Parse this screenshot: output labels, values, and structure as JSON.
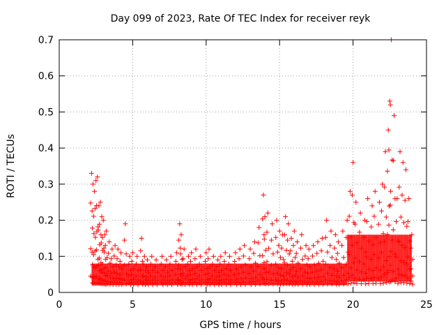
{
  "chart_data": {
    "type": "scatter",
    "title": "Day 099 of 2023, Rate Of TEC Index for receiver reyk",
    "xlabel": "GPS time / hours",
    "ylabel": "ROTI / TECUs",
    "xlim": [
      0,
      25
    ],
    "ylim": [
      0,
      0.7
    ],
    "xticks": [
      0,
      5,
      10,
      15,
      20,
      25
    ],
    "yticks": [
      0,
      0.1,
      0.2,
      0.3,
      0.4,
      0.5,
      0.6,
      0.7
    ],
    "xtick_labels": [
      "0",
      "5",
      "10",
      "15",
      "20",
      "25"
    ],
    "ytick_labels": [
      "0",
      "0.1",
      "0.2",
      "0.3",
      "0.4",
      "0.5",
      "0.6",
      "0.7"
    ],
    "grid": true,
    "marker": "+",
    "color": "#ff0000",
    "series": [
      {
        "x": [
          2.2,
          2.3,
          2.4,
          2.5,
          2.6,
          2.7,
          2.8,
          2.9,
          3.0,
          3.1,
          3.2,
          3.4,
          3.6,
          3.8,
          4.0,
          4.2,
          4.5,
          4.8,
          5.0,
          5.3,
          5.6,
          5.8,
          6.0,
          6.3,
          6.6,
          7.0,
          7.3,
          7.6,
          8.0,
          8.2,
          8.3,
          8.5,
          8.8,
          9.0,
          9.3,
          9.6,
          10.0,
          10.2,
          10.5,
          10.8,
          11.0,
          11.3,
          11.6,
          12.0,
          12.3,
          12.6,
          13.0,
          13.3,
          13.6,
          13.9,
          14.0,
          14.2,
          14.5,
          14.8,
          15.0,
          15.2,
          15.4,
          15.6,
          15.8,
          16.0,
          16.2,
          16.5,
          16.8,
          17.0,
          17.3,
          17.6,
          17.9,
          18.2,
          18.5,
          18.8,
          19.0,
          19.3,
          19.6,
          19.8,
          20.0,
          20.2,
          20.5,
          20.8,
          21.0,
          21.3,
          21.5,
          21.8,
          22.0,
          22.2,
          22.4,
          22.5,
          22.6,
          22.8,
          23.0,
          23.2,
          23.4,
          23.6,
          23.8,
          24.0
        ],
        "y": [
          0.33,
          0.3,
          0.28,
          0.31,
          0.32,
          0.24,
          0.25,
          0.21,
          0.2,
          0.16,
          0.17,
          0.14,
          0.12,
          0.13,
          0.12,
          0.11,
          0.19,
          0.1,
          0.11,
          0.1,
          0.15,
          0.1,
          0.09,
          0.1,
          0.09,
          0.1,
          0.09,
          0.1,
          0.11,
          0.19,
          0.16,
          0.12,
          0.1,
          0.11,
          0.12,
          0.1,
          0.11,
          0.12,
          0.1,
          0.09,
          0.1,
          0.11,
          0.1,
          0.11,
          0.12,
          0.13,
          0.12,
          0.14,
          0.18,
          0.27,
          0.21,
          0.22,
          0.19,
          0.2,
          0.17,
          0.16,
          0.21,
          0.19,
          0.15,
          0.17,
          0.14,
          0.16,
          0.13,
          0.12,
          0.13,
          0.14,
          0.15,
          0.2,
          0.17,
          0.16,
          0.14,
          0.17,
          0.2,
          0.28,
          0.36,
          0.25,
          0.22,
          0.2,
          0.26,
          0.24,
          0.28,
          0.25,
          0.3,
          0.39,
          0.45,
          0.53,
          0.7,
          0.49,
          0.26,
          0.39,
          0.36,
          0.34,
          0.26,
          0.16
        ]
      }
    ]
  }
}
